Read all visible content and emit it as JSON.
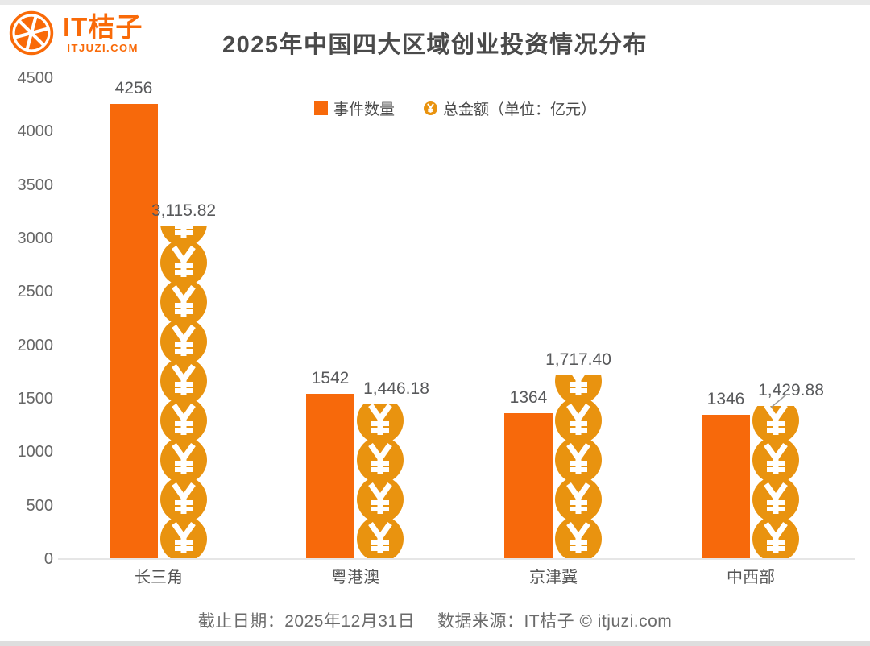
{
  "logo": {
    "name": "IT桔子",
    "domain": "ITJUZI.COM"
  },
  "title": "2025年中国四大区域创业投资情况分布",
  "legend": {
    "items": [
      {
        "label": "事件数量",
        "swatch": "square"
      },
      {
        "label": "总金额（单位：亿元）",
        "swatch": "yen-coin"
      }
    ]
  },
  "footer": "截止日期：2025年12月31日　 数据来源：IT桔子 © itjuzi.com",
  "colors": {
    "bar": "#F7690B",
    "coin": "#E9930F",
    "brand": "#F96A08",
    "title_text": "#4A4A4A",
    "value_text": "#58595B",
    "axis_text": "#666666",
    "axis_line": "#E6E6E6",
    "footer_text": "#6B6B6B",
    "leader_line": "#9B9B9B"
  },
  "chart_data": {
    "type": "bar",
    "title": "2025年中国四大区域创业投资情况分布",
    "categories": [
      "长三角",
      "粤港澳",
      "京津冀",
      "中西部"
    ],
    "series": [
      {
        "name": "事件数量",
        "values": [
          4256,
          1542,
          1364,
          1346
        ],
        "labels": [
          "4256",
          "1542",
          "1364",
          "1346"
        ]
      },
      {
        "name": "总金额（单位：亿元）",
        "values": [
          3115.82,
          1446.18,
          1717.4,
          1429.88
        ],
        "labels": [
          "3,115.82",
          "1,446.18",
          "1,717.40",
          "1,429.88"
        ]
      }
    ],
    "ylim": [
      0,
      4500
    ],
    "ytick_step": 500,
    "yticks": [
      0,
      500,
      1000,
      1500,
      2000,
      2500,
      3000,
      3500,
      4000,
      4500
    ],
    "grid": false,
    "legend_position": "top-center",
    "amount_label_dx": [
      0,
      20,
      0,
      19
    ],
    "amount_label_leader": [
      false,
      false,
      false,
      true
    ]
  }
}
